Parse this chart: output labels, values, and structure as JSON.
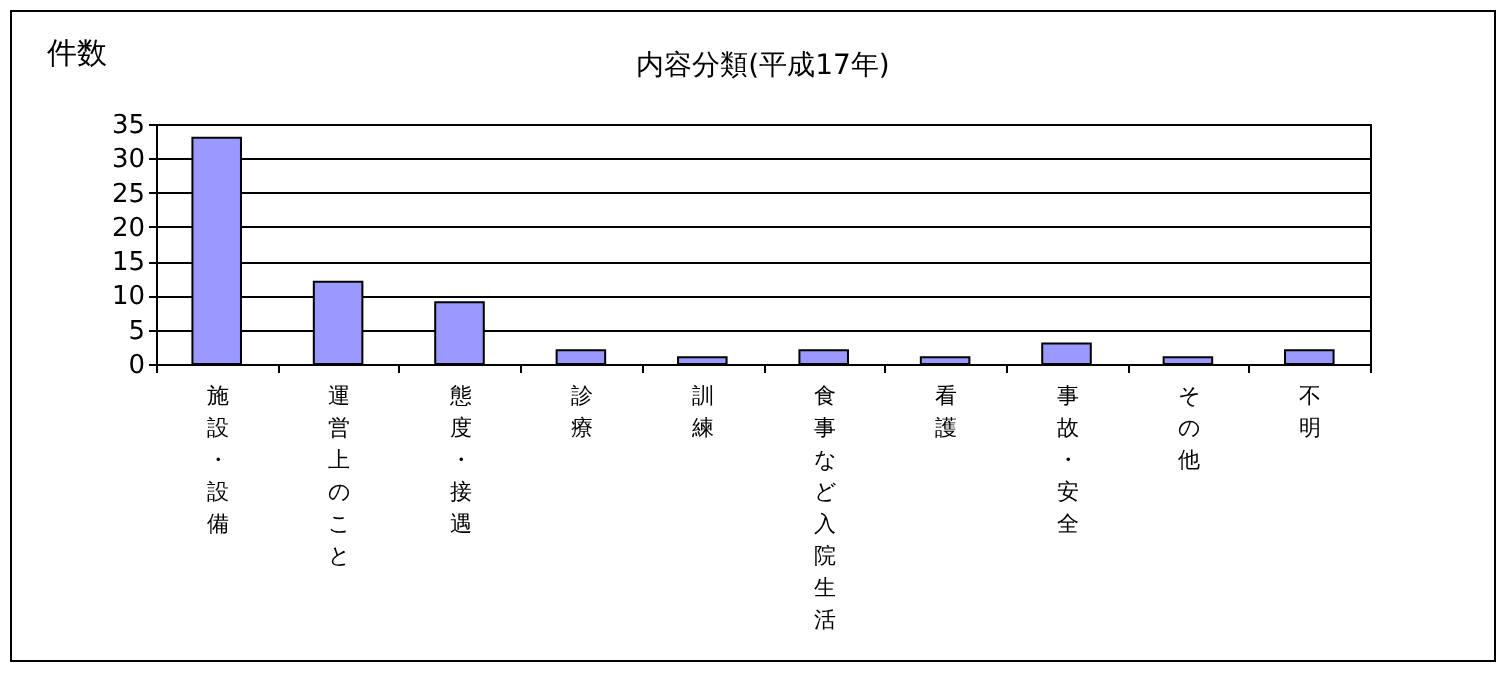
{
  "chart_data": {
    "type": "bar",
    "title": "内容分類(平成17年)",
    "ylabel": "件数",
    "categories": [
      "施設・設備",
      "運営上のこと",
      "態度・接遇",
      "診療",
      "訓練",
      "食事など入院生活",
      "看護",
      "事故・安全",
      "その他",
      "不明"
    ],
    "values": [
      33,
      12,
      9,
      2,
      1,
      2,
      1,
      3,
      1,
      2
    ],
    "color": "#9999ff",
    "ylim": [
      0,
      35
    ],
    "yticks": [
      0,
      5,
      10,
      15,
      20,
      25,
      30,
      35
    ],
    "grid": "y"
  }
}
